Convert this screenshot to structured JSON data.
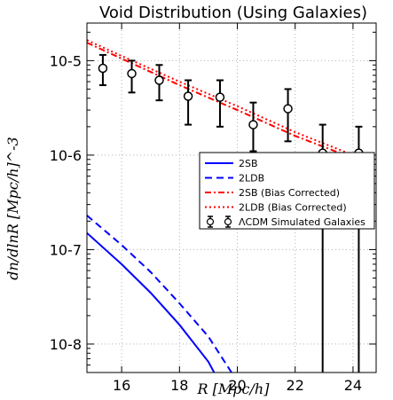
{
  "chart_data": {
    "type": "line",
    "title": "Void Distribution (Using Galaxies)",
    "xlabel": "R [Mpc/h]",
    "ylabel": "dn/dlnR [Mpc/h]^-3",
    "xlim": [
      14.8,
      24.8
    ],
    "ylim": [
      5e-09,
      2.5e-05
    ],
    "yscale": "log",
    "grid": true,
    "legend_position": "center-right",
    "x_ticks": [
      "16",
      "18",
      "20",
      "22",
      "24"
    ],
    "y_ticks": [
      "10-8",
      "10-7",
      "10-6",
      "10-5"
    ],
    "series": [
      {
        "name": "2SB",
        "style": "solid",
        "color": "#0000ff",
        "x": [
          14.8,
          16.0,
          17.0,
          18.0,
          19.0,
          19.2
        ],
        "y": [
          1.5e-07,
          7e-08,
          3.5e-08,
          1.6e-08,
          6.5e-09,
          5e-09
        ]
      },
      {
        "name": "2LDB",
        "style": "dashed",
        "color": "#0000ff",
        "x": [
          14.8,
          16.0,
          17.0,
          18.0,
          19.0,
          19.8
        ],
        "y": [
          2.3e-07,
          1.12e-07,
          5.8e-08,
          2.7e-08,
          1.2e-08,
          5e-09
        ]
      },
      {
        "name": "2SB (Bias Corrected)",
        "style": "dashdot",
        "color": "#ff0000",
        "x": [
          14.8,
          16.0,
          18.0,
          20.0,
          22.0,
          24.8
        ],
        "y": [
          1.55e-05,
          1.05e-05,
          5.5e-06,
          3e-06,
          1.6e-06,
          7.5e-07
        ]
      },
      {
        "name": "2LDB (Bias Corrected)",
        "style": "dotted",
        "color": "#ff0000",
        "x": [
          14.8,
          16.0,
          18.0,
          20.0,
          22.0,
          24.8
        ],
        "y": [
          1.65e-05,
          1.12e-05,
          6e-06,
          3.3e-06,
          1.75e-06,
          8e-07
        ]
      },
      {
        "name": "ΛCDM Simulated Galaxies",
        "style": "errorbar",
        "color": "#000000",
        "x": [
          15.35,
          16.35,
          17.3,
          18.3,
          19.4,
          20.55,
          21.75,
          22.95,
          24.2
        ],
        "y": [
          8.3e-06,
          7.3e-06,
          6.2e-06,
          4.2e-06,
          4.1e-06,
          2.1e-06,
          3.1e-06,
          1.05e-06,
          1.05e-06
        ],
        "y_low": [
          5.5e-06,
          4.6e-06,
          3.8e-06,
          2.1e-06,
          2e-06,
          1.1e-06,
          1.4e-06,
          5e-09,
          5e-09
        ],
        "y_high": [
          1.15e-05,
          1e-05,
          9e-06,
          6.2e-06,
          6.2e-06,
          3.6e-06,
          5e-06,
          2.1e-06,
          2e-06
        ]
      }
    ]
  }
}
